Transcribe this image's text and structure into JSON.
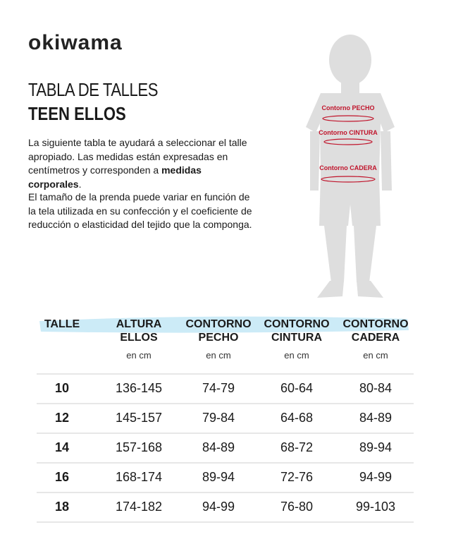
{
  "brand": "okiwama",
  "title": {
    "line1": "TABLA DE TALLES",
    "line2": "TEEN ELLOS"
  },
  "intro": {
    "paragraph1": {
      "text": "La siguiente tabla te ayudará a seleccionar el talle apropiado. Las medidas están expresadas en centímetros y corresponden a ",
      "bold": "medidas corporales",
      "end": "."
    },
    "paragraph2": "El tamaño de la prenda puede variar en función de la tela utilizada en su confección y el coeficiente de reducción o elasticidad del tejido que la componga."
  },
  "figure": {
    "labels": [
      "Contorno PECHO",
      "Contorno CINTURA",
      "Contorno CADERA"
    ]
  },
  "table": {
    "headers": [
      [
        "TALLE"
      ],
      [
        "ALTURA",
        "ELLOS"
      ],
      [
        "CONTORNO",
        "PECHO"
      ],
      [
        "CONTORNO",
        "CINTURA"
      ],
      [
        "CONTORNO",
        "CADERA"
      ]
    ],
    "units": [
      "en cm",
      "en cm",
      "en cm",
      "en cm"
    ],
    "rows": [
      [
        "10",
        "136-145",
        "74-79",
        "60-64",
        "80-84"
      ],
      [
        "12",
        "145-157",
        "79-84",
        "64-68",
        "84-89"
      ],
      [
        "14",
        "157-168",
        "84-89",
        "68-72",
        "89-94"
      ],
      [
        "16",
        "168-174",
        "89-94",
        "72-76",
        "94-99"
      ],
      [
        "18",
        "174-182",
        "94-99",
        "76-80",
        "99-103"
      ]
    ]
  }
}
